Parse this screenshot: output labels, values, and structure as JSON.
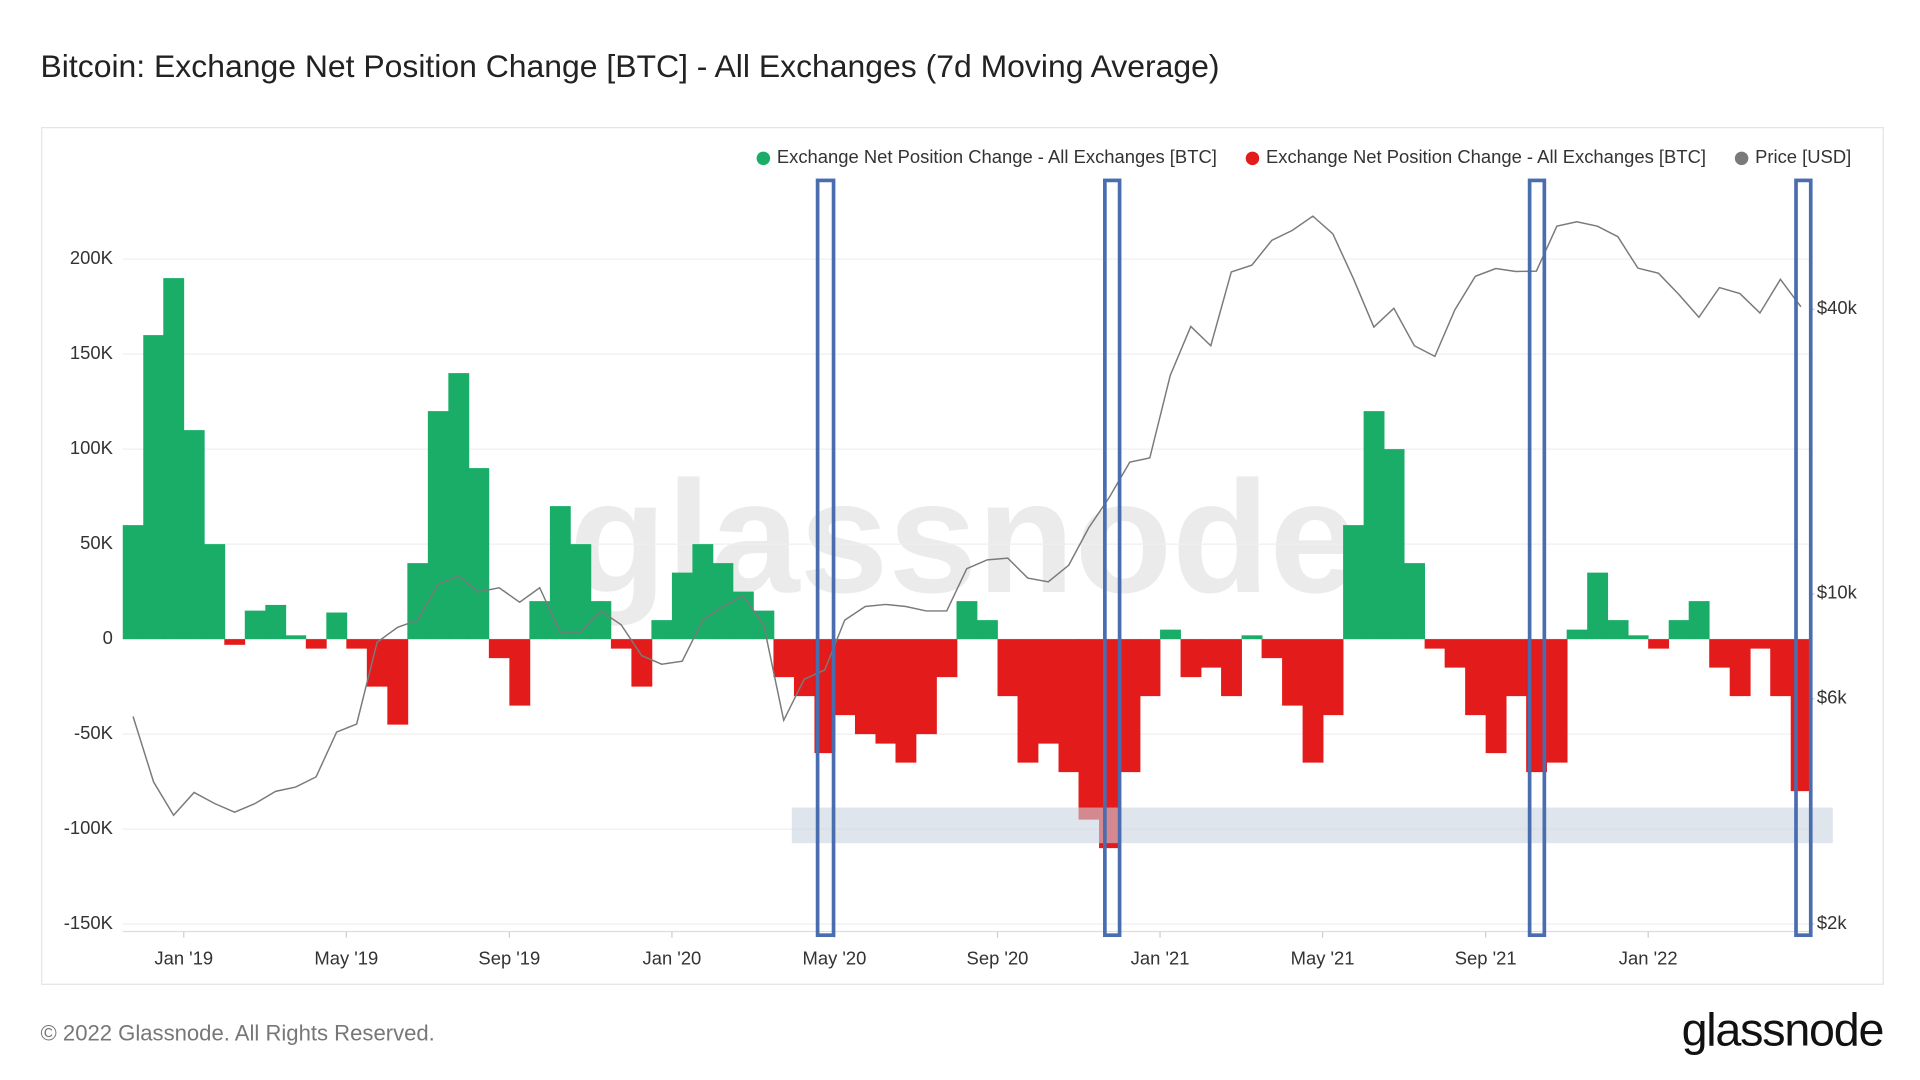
{
  "chart_data": {
    "type": "bar",
    "title": "Bitcoin: Exchange Net Position Change [BTC] - All Exchanges (7d Moving Average)",
    "watermark": "glassnode",
    "copyright": "© 2022 Glassnode. All Rights Reserved.",
    "logo": "glassnode",
    "legend": "top-right",
    "grid": true,
    "x": [
      2018.875,
      2018.917,
      2018.958,
      2019.0,
      2019.042,
      2019.083,
      2019.125,
      2019.167,
      2019.208,
      2019.25,
      2019.292,
      2019.333,
      2019.375,
      2019.417,
      2019.458,
      2019.5,
      2019.542,
      2019.583,
      2019.625,
      2019.667,
      2019.708,
      2019.75,
      2019.792,
      2019.833,
      2019.875,
      2019.917,
      2019.958,
      2020.0,
      2020.042,
      2020.083,
      2020.125,
      2020.167,
      2020.208,
      2020.25,
      2020.292,
      2020.333,
      2020.375,
      2020.417,
      2020.458,
      2020.5,
      2020.542,
      2020.583,
      2020.625,
      2020.667,
      2020.708,
      2020.75,
      2020.792,
      2020.833,
      2020.875,
      2020.917,
      2020.958,
      2021.0,
      2021.042,
      2021.083,
      2021.125,
      2021.167,
      2021.208,
      2021.25,
      2021.292,
      2021.333,
      2021.375,
      2021.417,
      2021.458,
      2021.5,
      2021.542,
      2021.583,
      2021.625,
      2021.667,
      2021.708,
      2021.75,
      2021.792,
      2021.833,
      2021.875,
      2021.917,
      2021.958,
      2022.0,
      2022.042,
      2022.083,
      2022.125,
      2022.167,
      2022.208,
      2022.25,
      2022.292
    ],
    "xlim": [
      2018.875,
      2022.333
    ],
    "xticks": [
      {
        "value": 2019.0,
        "label": "Jan '19"
      },
      {
        "value": 2019.333,
        "label": "May '19"
      },
      {
        "value": 2019.667,
        "label": "Sep '19"
      },
      {
        "value": 2020.0,
        "label": "Jan '20"
      },
      {
        "value": 2020.333,
        "label": "May '20"
      },
      {
        "value": 2020.667,
        "label": "Sep '20"
      },
      {
        "value": 2021.0,
        "label": "Jan '21"
      },
      {
        "value": 2021.333,
        "label": "May '21"
      },
      {
        "value": 2021.667,
        "label": "Sep '21"
      },
      {
        "value": 2022.0,
        "label": "Jan '22"
      }
    ],
    "ylim": [
      -150000,
      244000
    ],
    "yticks": [
      {
        "value": -150000,
        "label": "-150K"
      },
      {
        "value": -100000,
        "label": "-100K"
      },
      {
        "value": -50000,
        "label": "-50K"
      },
      0,
      {
        "value": 50000,
        "label": "50K"
      },
      {
        "value": 100000,
        "label": "100K"
      },
      {
        "value": 150000,
        "label": "150K"
      },
      {
        "value": 200000,
        "label": "200K"
      }
    ],
    "y2lim": [
      2000,
      76800
    ],
    "y2log": true,
    "y2ticks": [
      {
        "value": 2000,
        "label": "$2k"
      },
      {
        "value": 6000,
        "label": "$6k"
      },
      {
        "value": 10000,
        "label": "$10k"
      },
      {
        "value": 40000,
        "label": "$40k"
      }
    ],
    "series": [
      {
        "name": "Exchange Net Position Change - All Exchanges [BTC]",
        "color": "#19ad68",
        "values": [
          60000,
          160000,
          190000,
          110000,
          50000,
          null,
          15000,
          18000,
          2000,
          null,
          14000,
          null,
          null,
          null,
          40000,
          120000,
          140000,
          90000,
          null,
          null,
          20000,
          70000,
          50000,
          20000,
          null,
          null,
          10000,
          35000,
          50000,
          40000,
          25000,
          15000,
          null,
          null,
          null,
          null,
          null,
          null,
          null,
          null,
          null,
          20000,
          10000,
          null,
          null,
          null,
          null,
          null,
          null,
          null,
          null,
          5000,
          null,
          null,
          null,
          2000,
          null,
          null,
          null,
          null,
          60000,
          120000,
          100000,
          40000,
          null,
          null,
          null,
          null,
          null,
          null,
          null,
          5000,
          35000,
          10000,
          2000,
          null,
          10000,
          20000,
          null,
          null,
          null,
          null,
          null
        ]
      },
      {
        "name": "Exchange Net Position Change - All Exchanges [BTC]",
        "color": "#e31b1b",
        "values": [
          null,
          null,
          null,
          null,
          null,
          -3000,
          null,
          null,
          null,
          -5000,
          null,
          -5000,
          -25000,
          -45000,
          null,
          null,
          null,
          null,
          -10000,
          -35000,
          null,
          null,
          null,
          null,
          -5000,
          -25000,
          null,
          null,
          null,
          null,
          null,
          null,
          -20000,
          -30000,
          -60000,
          -40000,
          -50000,
          -55000,
          -65000,
          -50000,
          -20000,
          null,
          null,
          -30000,
          -65000,
          -55000,
          -70000,
          -95000,
          -110000,
          -70000,
          -30000,
          null,
          -20000,
          -15000,
          -30000,
          null,
          -10000,
          -35000,
          -65000,
          -40000,
          null,
          null,
          null,
          null,
          -5000,
          -15000,
          -40000,
          -60000,
          -30000,
          -70000,
          -65000,
          null,
          null,
          null,
          null,
          -5000,
          null,
          null,
          -15000,
          -30000,
          -5000,
          -30000,
          -80000
        ]
      },
      {
        "name": "Price [USD]",
        "color": "#7a7a7a",
        "type": "line",
        "axis": "y2",
        "values": [
          5500,
          4000,
          3400,
          3800,
          3600,
          3450,
          3600,
          3820,
          3900,
          4100,
          5100,
          5300,
          7900,
          8500,
          8800,
          10500,
          10900,
          10100,
          10300,
          9600,
          10300,
          8300,
          8300,
          9200,
          8600,
          7400,
          7100,
          7200,
          8800,
          9400,
          9900,
          8600,
          5400,
          6600,
          6900,
          8800,
          9400,
          9500,
          9400,
          9200,
          9200,
          11300,
          11800,
          11900,
          10800,
          10600,
          11500,
          13800,
          16000,
          19000,
          19400,
          29000,
          36800,
          33500,
          48000,
          49600,
          56000,
          58800,
          63000,
          57800,
          46500,
          36700,
          40200,
          33500,
          31800,
          39900,
          47000,
          48800,
          48100,
          48200,
          60000,
          61300,
          60000,
          57000,
          48900,
          47700,
          43000,
          38500,
          44500,
          43200,
          39300,
          46300,
          40500
        ]
      }
    ]
  }
}
